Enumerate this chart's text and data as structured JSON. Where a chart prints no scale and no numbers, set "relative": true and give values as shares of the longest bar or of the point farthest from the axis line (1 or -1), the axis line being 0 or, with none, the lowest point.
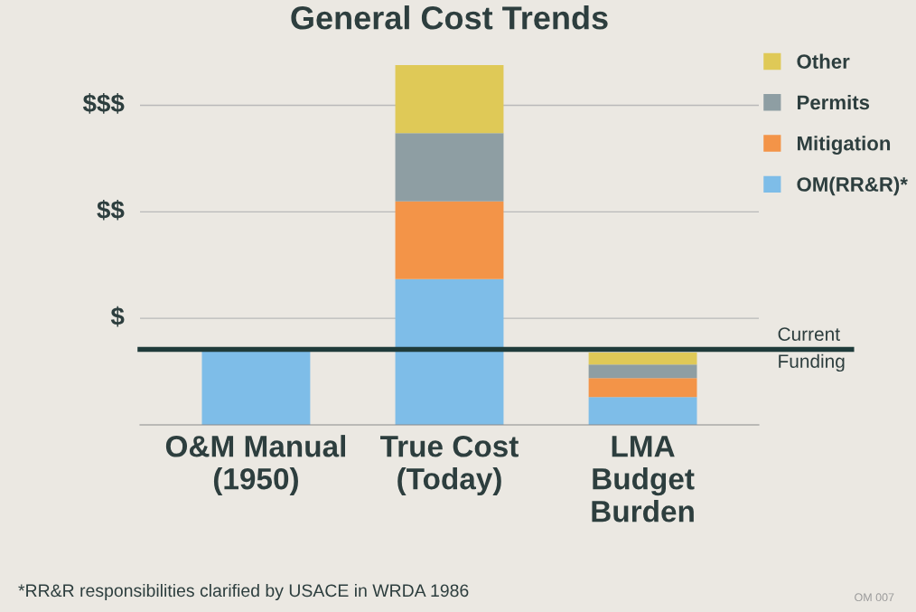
{
  "chart_data": {
    "type": "bar",
    "title": "General Cost Trends",
    "stacked": true,
    "relative": true,
    "categories": [
      "O&M Manual\n(1950)",
      "True Cost\n(Today)",
      "LMA\nBudget\nBurden"
    ],
    "series": [
      {
        "name": "OM(RR&R)*",
        "color": "#7ebde8",
        "values": [
          0.21,
          0.405,
          0.077
        ]
      },
      {
        "name": "Mitigation",
        "color": "#f39448",
        "values": [
          null,
          0.216,
          0.053
        ]
      },
      {
        "name": "Permits",
        "color": "#8e9ea3",
        "values": [
          null,
          0.19,
          0.038
        ]
      },
      {
        "name": "Other",
        "color": "#dfc957",
        "values": [
          null,
          0.189,
          0.033
        ]
      }
    ],
    "legend": "top right",
    "ref_lines": [
      {
        "axis": "y",
        "value": 0.296,
        "label": "$",
        "color": "#b9b9b9"
      },
      {
        "axis": "y",
        "value": 0.592,
        "label": "$$",
        "color": "#b9b9b9"
      },
      {
        "axis": "y",
        "value": 0.888,
        "label": "$$$",
        "color": "#b9b9b9"
      },
      {
        "axis": "y",
        "value": 0.21,
        "label": "Current Funding",
        "color": "#1f3b3a"
      }
    ],
    "annotations": [
      "*RR&R responsibilities clarified by USACE in WRDA 1986",
      "OM 007"
    ]
  }
}
